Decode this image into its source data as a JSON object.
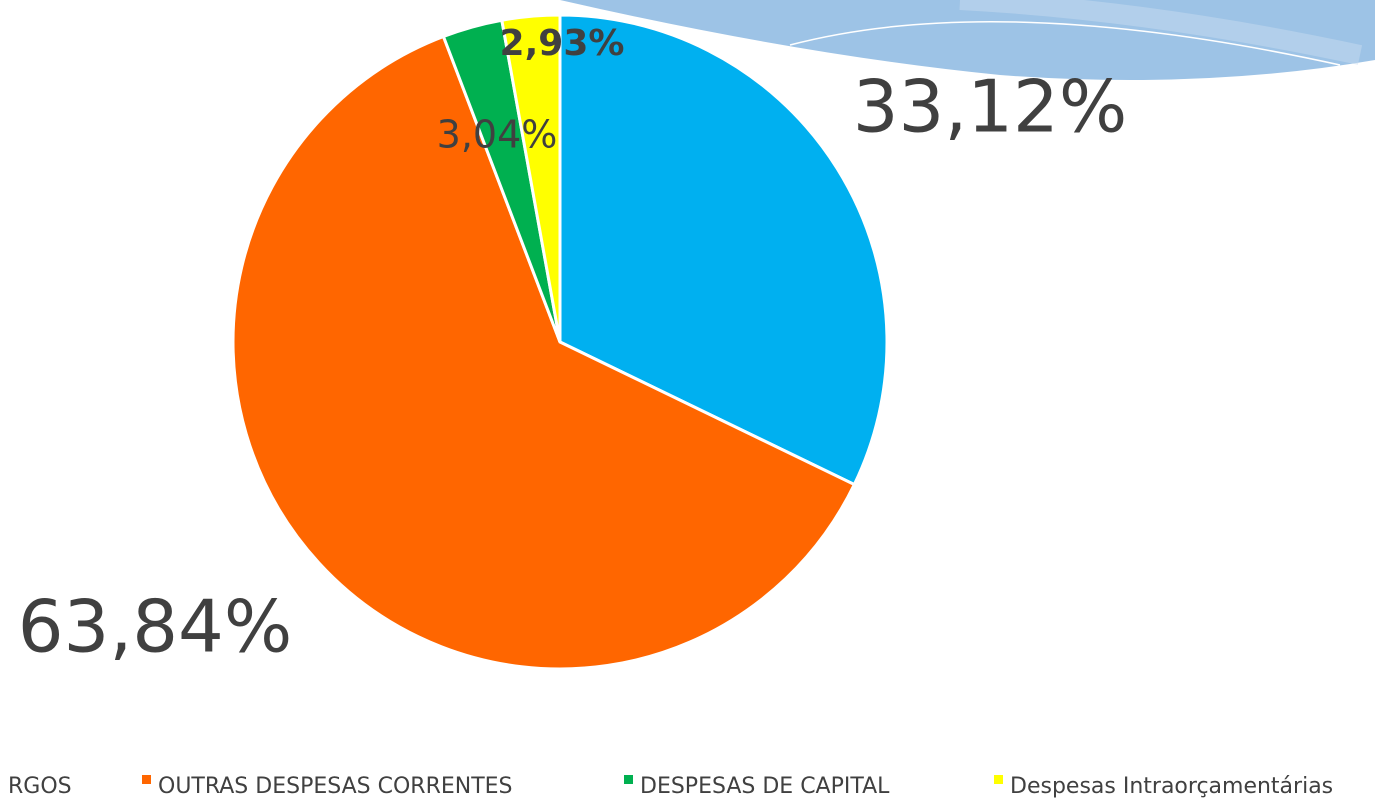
{
  "chart_data": {
    "type": "pie",
    "categories": [
      "RGOS",
      "OUTRAS DESPESAS CORRENTES",
      "DESPESAS DE CAPITAL",
      "Despesas Intraorçamentárias"
    ],
    "values": [
      33.12,
      63.84,
      3.04,
      2.93
    ],
    "value_labels": [
      "33,12%",
      "63,84%",
      "3,04%",
      "2,93%"
    ],
    "colors": [
      "#00b0f0",
      "#ff6600",
      "#00b050",
      "#ffff00"
    ],
    "legend": "bottom"
  }
}
